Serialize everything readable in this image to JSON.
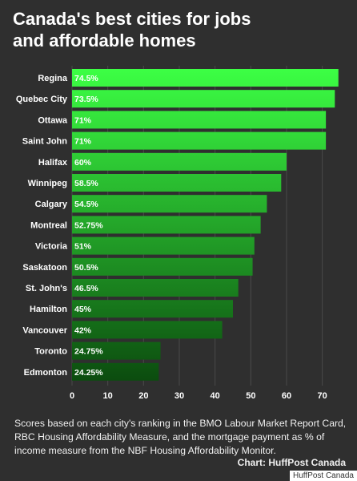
{
  "header": {
    "title_line1": "Canada's best cities for jobs",
    "title_line2": "and affordable homes"
  },
  "footer": {
    "caption": "Scores based on each city's ranking in the BMO Labour Market Report Card, RBC Housing Affordability Measure, and the mortgage payment as % of income measure from the NBF Housing Affordability Monitor.",
    "credit": "Chart: HuffPost Canada",
    "watermark": "HuffPost Canada"
  },
  "colors": {
    "background": "#2f2f2f",
    "bar_top": "#3cff44",
    "bar_bottom": "#0b4a0e",
    "text": "#ffffff",
    "grid": "#4a4a4a"
  },
  "chart_data": {
    "type": "bar",
    "orientation": "horizontal",
    "categories": [
      "Regina",
      "Quebec City",
      "Ottawa",
      "Saint John",
      "Halifax",
      "Winnipeg",
      "Calgary",
      "Montreal",
      "Victoria",
      "Saskatoon",
      "St. John's",
      "Hamilton",
      "Vancouver",
      "Toronto",
      "Edmonton"
    ],
    "values": [
      74.5,
      73.5,
      71,
      71,
      60,
      58.5,
      54.5,
      52.75,
      51,
      50.5,
      46.5,
      45,
      42,
      24.75,
      24.25
    ],
    "value_labels": [
      "74.5%",
      "73.5%",
      "71%",
      "71%",
      "60%",
      "58.5%",
      "54.5%",
      "52.75%",
      "51%",
      "50.5%",
      "46.5%",
      "45%",
      "42%",
      "24.75%",
      "24.25%"
    ],
    "xlim": [
      0,
      75
    ],
    "xticks": [
      0,
      10,
      20,
      30,
      40,
      50,
      60,
      70
    ],
    "grid": true
  }
}
